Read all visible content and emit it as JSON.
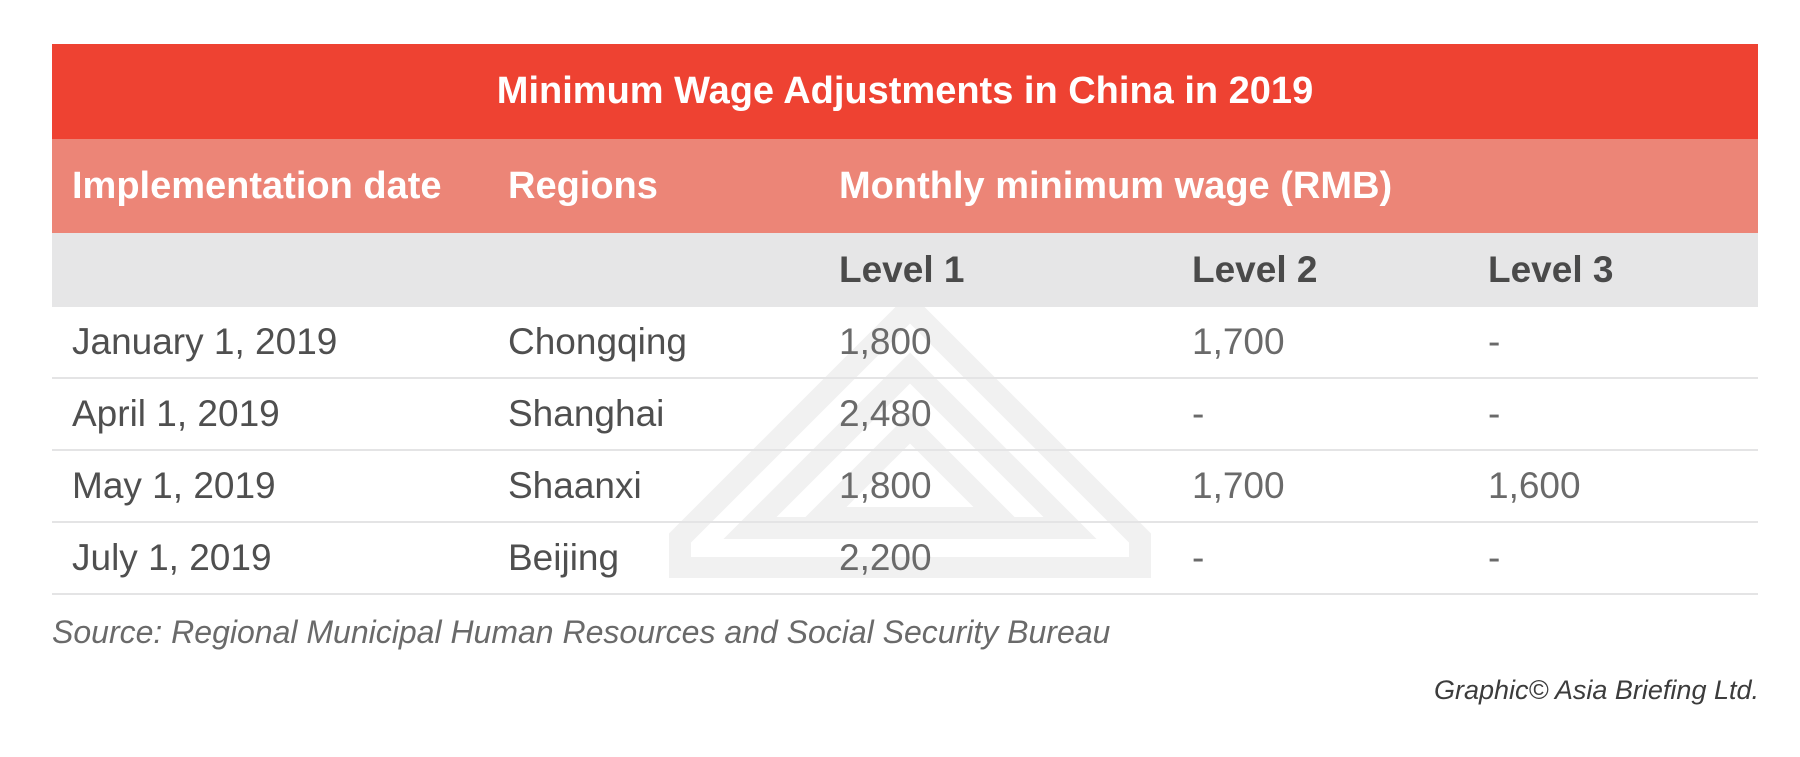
{
  "title": "Minimum Wage Adjustments in China in 2019",
  "headers": {
    "implementation_date": "Implementation date",
    "regions": "Regions",
    "monthly_wage": "Monthly minimum wage (RMB)"
  },
  "levels": [
    "Level 1",
    "Level 2",
    "Level 3"
  ],
  "rows": [
    {
      "date": "January 1, 2019",
      "region": "Chongqing",
      "level1": "1,800",
      "level2": "1,700",
      "level3": "-"
    },
    {
      "date": "April 1, 2019",
      "region": "Shanghai",
      "level1": "2,480",
      "level2": "-",
      "level3": "-"
    },
    {
      "date": "May 1, 2019",
      "region": "Shaanxi",
      "level1": "1,800",
      "level2": "1,700",
      "level3": "1,600"
    },
    {
      "date": "July 1, 2019",
      "region": "Beijing",
      "level1": "2,200",
      "level2": "-",
      "level3": "-"
    }
  ],
  "source": "Source: Regional Municipal Human Resources and Social Security Bureau",
  "credit": "Graphic© Asia Briefing Ltd.",
  "colors": {
    "title_bg": "#ee4232",
    "header_bg": "#ec8577",
    "subheader_bg": "#e6e6e7",
    "row_divider": "#e4e4e5"
  }
}
